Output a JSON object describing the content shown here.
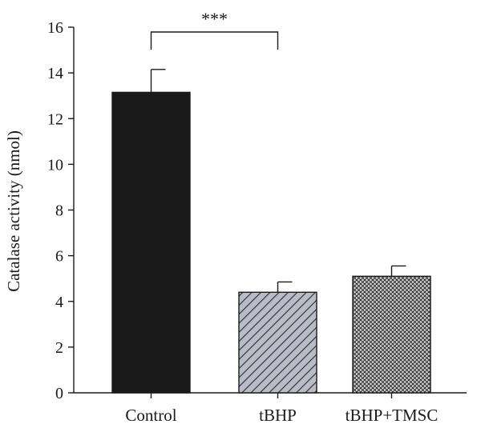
{
  "chart_data": {
    "type": "bar",
    "ylabel": "Catalase activity (nmol)",
    "xlabel": "",
    "ylim": [
      0,
      16
    ],
    "yticks": [
      "0",
      "2",
      "4",
      "6",
      "8",
      "10",
      "12",
      "14",
      "16"
    ],
    "categories": [
      "Control",
      "tBHP",
      "tBHP+TMSC"
    ],
    "values": [
      13.15,
      4.4,
      5.1
    ],
    "errors": [
      1.0,
      0.45,
      0.45
    ],
    "fills": [
      "solid",
      "diagonal-hatch",
      "crosshatch"
    ],
    "colors": {
      "control": "#1a1a1a",
      "tbhp": "#aab0bd",
      "tmsc": "#9a9a9a"
    },
    "significance": {
      "label": "***",
      "from": 0,
      "to": 1
    },
    "grid": false,
    "legend": "none"
  }
}
